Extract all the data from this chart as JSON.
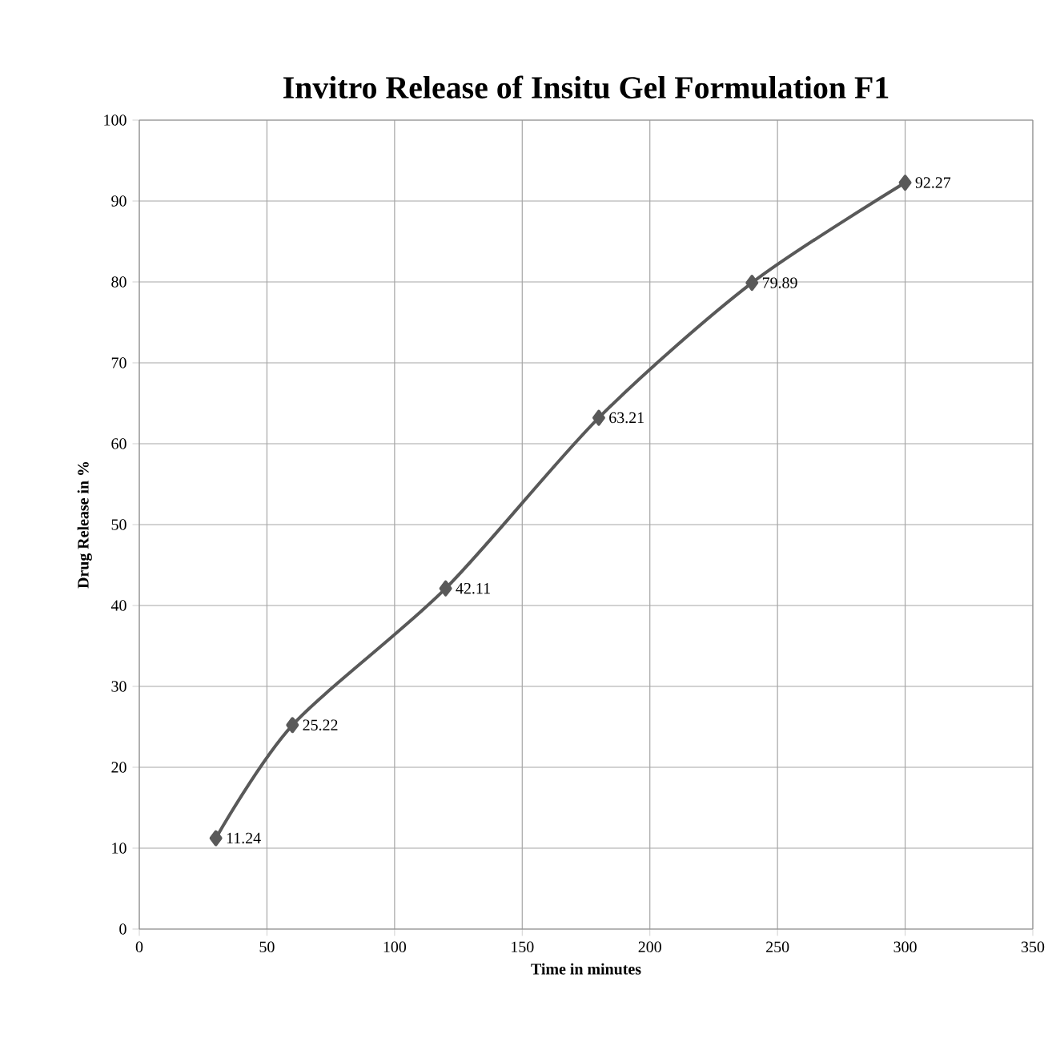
{
  "chart_data": {
    "type": "line",
    "title": "Invitro Release of Insitu Gel Formulation F1",
    "xlabel": "Time in minutes",
    "ylabel": "Drug Release in %",
    "x": [
      30,
      60,
      120,
      180,
      240,
      300
    ],
    "series": [
      {
        "color": "#595959",
        "values": [
          11.24,
          25.22,
          42.11,
          63.21,
          79.89,
          92.27
        ]
      }
    ],
    "xlim": [
      0,
      350
    ],
    "xticks": [
      0,
      50,
      100,
      150,
      200,
      250,
      300,
      350
    ],
    "ylim": [
      0,
      100
    ],
    "yticks": [
      0,
      10,
      20,
      30,
      40,
      50,
      60,
      70,
      80,
      90,
      100
    ],
    "grid": true,
    "marker": "diamond",
    "line_style": "solid",
    "data_labels": true
  }
}
